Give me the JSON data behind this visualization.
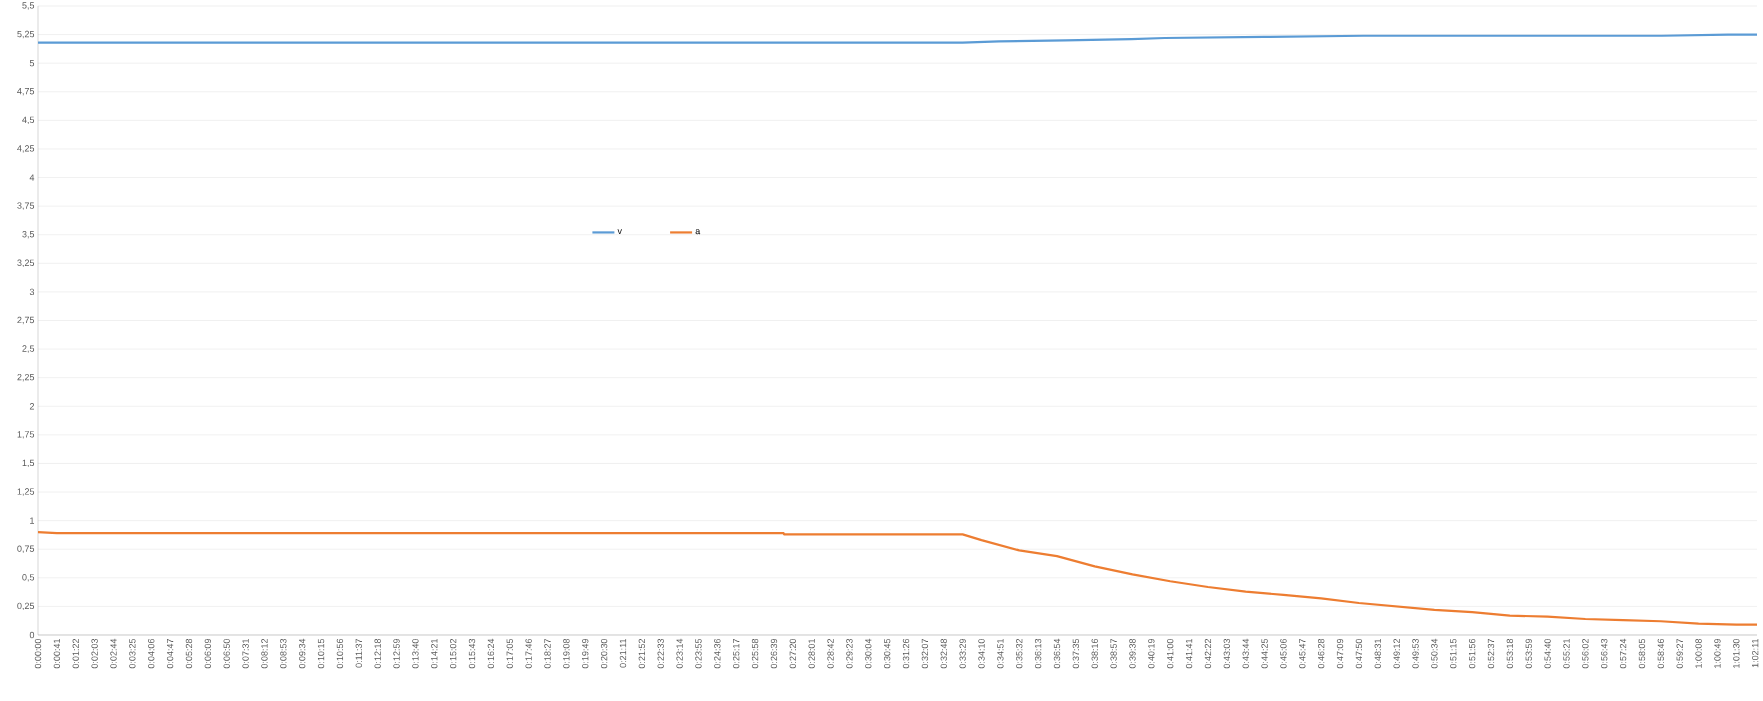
{
  "chart_data": {
    "type": "line",
    "x": [
      0,
      0.55806,
      0.58,
      0.62,
      0.66,
      0.68,
      0.74,
      0.8,
      0.9,
      0.98,
      1.02,
      1.0375
    ],
    "series": [
      {
        "name": "v",
        "color": "#5b9bd5",
        "values": [
          5.18,
          5.18,
          5.19,
          5.2,
          5.21,
          5.22,
          5.23,
          5.24,
          5.24,
          5.24,
          5.25,
          5.25
        ]
      },
      {
        "name": "a",
        "color": "#ed7d31",
        "x": [
          0,
          0.01139,
          0.45,
          0.4503,
          0.55806,
          0.56944,
          0.59222,
          0.615,
          0.63778,
          0.66056,
          0.68333,
          0.70611,
          0.72889,
          0.75167,
          0.77444,
          0.79722,
          0.82,
          0.84278,
          0.86556,
          0.88833,
          0.91111,
          0.93389,
          0.95667,
          0.97944,
          1.00222,
          1.025,
          1.0375
        ],
        "values": [
          0.9,
          0.89,
          0.89,
          0.88,
          0.88,
          0.83,
          0.74,
          0.69,
          0.6,
          0.53,
          0.47,
          0.42,
          0.38,
          0.35,
          0.32,
          0.28,
          0.25,
          0.22,
          0.2,
          0.17,
          0.16,
          0.14,
          0.13,
          0.12,
          0.1,
          0.09,
          0.09
        ]
      }
    ],
    "xlim": [
      0,
      1.0375
    ],
    "ylim": [
      0,
      5.5
    ],
    "yticks": [
      0,
      {
        "value": 0.25,
        "label": "0,25"
      },
      {
        "value": 0.5,
        "label": "0,5"
      },
      {
        "value": 0.75,
        "label": "0,75"
      },
      1,
      {
        "value": 1.25,
        "label": "1,25"
      },
      {
        "value": 1.5,
        "label": "1,5"
      },
      {
        "value": 1.75,
        "label": "1,75"
      },
      2,
      {
        "value": 2.25,
        "label": "2,25"
      },
      {
        "value": 2.5,
        "label": "2,5"
      },
      {
        "value": 2.75,
        "label": "2,75"
      },
      3,
      {
        "value": 3.25,
        "label": "3,25"
      },
      {
        "value": 3.5,
        "label": "3,5"
      },
      {
        "value": 3.75,
        "label": "3,75"
      },
      4,
      {
        "value": 4.25,
        "label": "4,25"
      },
      {
        "value": 4.5,
        "label": "4,5"
      },
      {
        "value": 4.75,
        "label": "4,75"
      },
      5,
      {
        "value": 5.25,
        "label": "5,25"
      },
      {
        "value": 5.5,
        "label": "5,5"
      }
    ],
    "xticks": [
      {
        "value": 0,
        "label": "0:00:00"
      },
      {
        "value": 0.01139,
        "label": "0:00:41"
      },
      {
        "value": 0.02278,
        "label": "0:01:22"
      },
      {
        "value": 0.03417,
        "label": "0:02:03"
      },
      {
        "value": 0.04556,
        "label": "0:02:44"
      },
      {
        "value": 0.05694,
        "label": "0:03:25"
      },
      {
        "value": 0.06833,
        "label": "0:04:06"
      },
      {
        "value": 0.07972,
        "label": "0:04:47"
      },
      {
        "value": 0.09111,
        "label": "0:05:28"
      },
      {
        "value": 0.1025,
        "label": "0:06:09"
      },
      {
        "value": 0.11389,
        "label": "0:06:50"
      },
      {
        "value": 0.12528,
        "label": "0:07:31"
      },
      {
        "value": 0.13667,
        "label": "0:08:12"
      },
      {
        "value": 0.14806,
        "label": "0:08:53"
      },
      {
        "value": 0.15944,
        "label": "0:09:34"
      },
      {
        "value": 0.17083,
        "label": "0:10:15"
      },
      {
        "value": 0.18222,
        "label": "0:10:56"
      },
      {
        "value": 0.19361,
        "label": "0:11:37"
      },
      {
        "value": 0.205,
        "label": "0:12:18"
      },
      {
        "value": 0.21639,
        "label": "0:12:59"
      },
      {
        "value": 0.22778,
        "label": "0:13:40"
      },
      {
        "value": 0.23917,
        "label": "0:14:21"
      },
      {
        "value": 0.25056,
        "label": "0:15:02"
      },
      {
        "value": 0.26194,
        "label": "0:15:43"
      },
      {
        "value": 0.27333,
        "label": "0:16:24"
      },
      {
        "value": 0.28472,
        "label": "0:17:05"
      },
      {
        "value": 0.29611,
        "label": "0:17:46"
      },
      {
        "value": 0.3075,
        "label": "0:18:27"
      },
      {
        "value": 0.31889,
        "label": "0:19:08"
      },
      {
        "value": 0.33028,
        "label": "0:19:49"
      },
      {
        "value": 0.34167,
        "label": "0:20:30"
      },
      {
        "value": 0.35306,
        "label": "0:21:11"
      },
      {
        "value": 0.36444,
        "label": "0:21:52"
      },
      {
        "value": 0.37583,
        "label": "0:22:33"
      },
      {
        "value": 0.38722,
        "label": "0:23:14"
      },
      {
        "value": 0.39861,
        "label": "0:23:55"
      },
      {
        "value": 0.41,
        "label": "0:24:36"
      },
      {
        "value": 0.42139,
        "label": "0:25:17"
      },
      {
        "value": 0.43278,
        "label": "0:25:58"
      },
      {
        "value": 0.44417,
        "label": "0:26:39"
      },
      {
        "value": 0.45556,
        "label": "0:27:20"
      },
      {
        "value": 0.46694,
        "label": "0:28:01"
      },
      {
        "value": 0.47833,
        "label": "0:28:42"
      },
      {
        "value": 0.48972,
        "label": "0:29:23"
      },
      {
        "value": 0.50111,
        "label": "0:30:04"
      },
      {
        "value": 0.5125,
        "label": "0:30:45"
      },
      {
        "value": 0.52389,
        "label": "0:31:26"
      },
      {
        "value": 0.53528,
        "label": "0:32:07"
      },
      {
        "value": 0.54667,
        "label": "0:32:48"
      },
      {
        "value": 0.55806,
        "label": "0:33:29"
      },
      {
        "value": 0.56944,
        "label": "0:34:10"
      },
      {
        "value": 0.58083,
        "label": "0:34:51"
      },
      {
        "value": 0.59222,
        "label": "0:35:32"
      },
      {
        "value": 0.60361,
        "label": "0:36:13"
      },
      {
        "value": 0.615,
        "label": "0:36:54"
      },
      {
        "value": 0.62639,
        "label": "0:37:35"
      },
      {
        "value": 0.63778,
        "label": "0:38:16"
      },
      {
        "value": 0.64917,
        "label": "0:38:57"
      },
      {
        "value": 0.66056,
        "label": "0:39:38"
      },
      {
        "value": 0.67194,
        "label": "0:40:19"
      },
      {
        "value": 0.68333,
        "label": "0:41:00"
      },
      {
        "value": 0.69472,
        "label": "0:41:41"
      },
      {
        "value": 0.70611,
        "label": "0:42:22"
      },
      {
        "value": 0.7175,
        "label": "0:43:03"
      },
      {
        "value": 0.72889,
        "label": "0:43:44"
      },
      {
        "value": 0.74028,
        "label": "0:44:25"
      },
      {
        "value": 0.75167,
        "label": "0:45:06"
      },
      {
        "value": 0.76306,
        "label": "0:45:47"
      },
      {
        "value": 0.77444,
        "label": "0:46:28"
      },
      {
        "value": 0.78583,
        "label": "0:47:09"
      },
      {
        "value": 0.79722,
        "label": "0:47:50"
      },
      {
        "value": 0.80861,
        "label": "0:48:31"
      },
      {
        "value": 0.82,
        "label": "0:49:12"
      },
      {
        "value": 0.83139,
        "label": "0:49:53"
      },
      {
        "value": 0.84278,
        "label": "0:50:34"
      },
      {
        "value": 0.85417,
        "label": "0:51:15"
      },
      {
        "value": 0.86556,
        "label": "0:51:56"
      },
      {
        "value": 0.87694,
        "label": "0:52:37"
      },
      {
        "value": 0.88833,
        "label": "0:53:18"
      },
      {
        "value": 0.89972,
        "label": "0:53:59"
      },
      {
        "value": 0.91111,
        "label": "0:54:40"
      },
      {
        "value": 0.9225,
        "label": "0:55:21"
      },
      {
        "value": 0.93389,
        "label": "0:56:02"
      },
      {
        "value": 0.94528,
        "label": "0:56:43"
      },
      {
        "value": 0.95667,
        "label": "0:57:24"
      },
      {
        "value": 0.96806,
        "label": "0:58:05"
      },
      {
        "value": 0.97944,
        "label": "0:58:46"
      },
      {
        "value": 0.99083,
        "label": "0:59:27"
      },
      {
        "value": 1.00222,
        "label": "1:00:08"
      },
      {
        "value": 1.01361,
        "label": "1:00:49"
      },
      {
        "value": 1.025,
        "label": "1:01:30"
      },
      {
        "value": 1.03639,
        "label": "1:02:11"
      }
    ],
    "grid": "y",
    "legend": "center",
    "marker": "none",
    "line_style": "solid"
  }
}
